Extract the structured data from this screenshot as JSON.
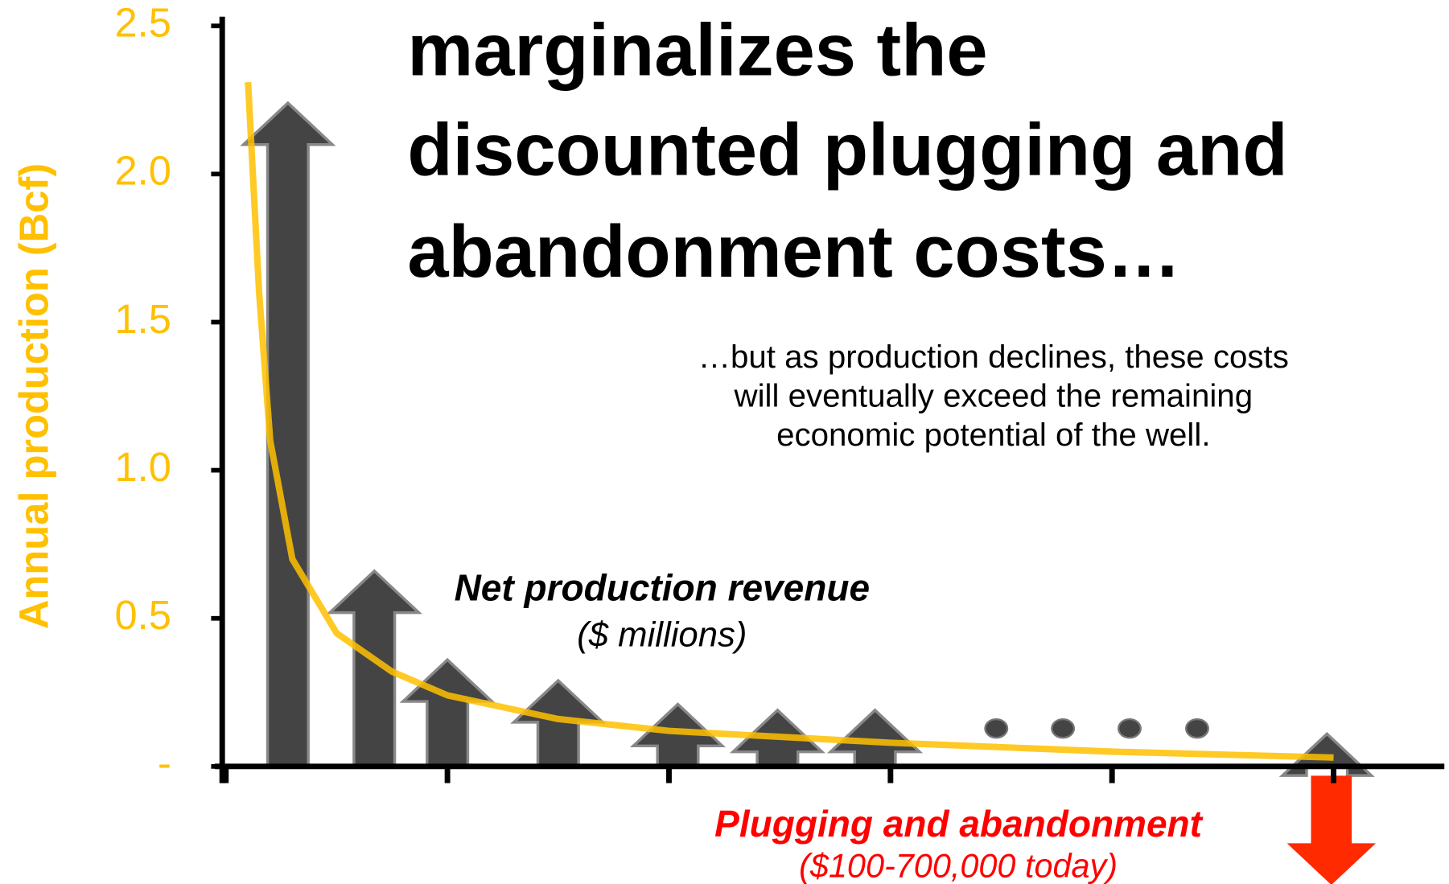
{
  "chart_data": {
    "type": "line",
    "headline": [
      "marginalizes the",
      "discounted plugging and",
      "abandonment costs…"
    ],
    "subtitle": [
      "…but as production declines, these costs",
      "will eventually exceed the remaining",
      "economic potential of the well."
    ],
    "y_label": "Annual production (Bcf)",
    "ylim": [
      0,
      2.5
    ],
    "yticks": [
      {
        "value": 0,
        "label": "-"
      },
      0.5,
      {
        "value": 1,
        "label": "1.0"
      },
      1.5,
      {
        "value": 2,
        "label": "2.0"
      },
      2.5
    ],
    "xlim": [
      -0.05,
      5.5
    ],
    "xticks": [
      0,
      1,
      2,
      3,
      4,
      5
    ],
    "series": [
      {
        "color": "#ffc000",
        "x": [
          0.1,
          0.15,
          0.2,
          0.3,
          0.5,
          0.75,
          1,
          1.5,
          2,
          3,
          4,
          5
        ],
        "values": [
          2.31,
          1.6,
          1.1,
          0.7,
          0.45,
          0.32,
          0.24,
          0.16,
          0.12,
          0.08,
          0.05,
          0.03
        ]
      }
    ],
    "revenue_arrows": {
      "color": "#444444",
      "x": [
        0.28,
        0.67,
        1.0,
        1.5,
        2.04,
        2.49,
        2.93,
        4.97
      ],
      "values": [
        2.24,
        0.66,
        0.36,
        0.29,
        0.21,
        0.19,
        0.19,
        0.11
      ]
    },
    "cost_arrow": {
      "color": "#ff2a00",
      "x": 4.99,
      "value": -0.4
    },
    "revenue_label": [
      "Net production revenue",
      "($ millions)"
    ],
    "cost_label": [
      "Plugging and abandonment",
      "($100-700,000 today)"
    ]
  }
}
